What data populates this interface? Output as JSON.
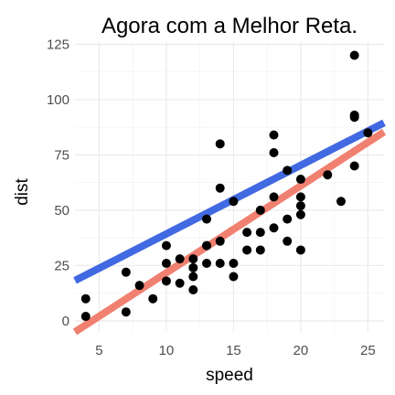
{
  "chart_data": {
    "type": "scatter",
    "title": "Agora com a Melhor Reta.",
    "xlabel": "speed",
    "ylabel": "dist",
    "xlim": [
      3.2,
      26.2
    ],
    "ylim": [
      -5,
      126
    ],
    "x_ticks": [
      5,
      10,
      15,
      20,
      25
    ],
    "y_ticks": [
      0,
      25,
      50,
      75,
      100,
      125
    ],
    "grid": true,
    "point_color": "#000000",
    "points": [
      {
        "x": 4,
        "y": 2
      },
      {
        "x": 4,
        "y": 10
      },
      {
        "x": 7,
        "y": 4
      },
      {
        "x": 7,
        "y": 22
      },
      {
        "x": 8,
        "y": 16
      },
      {
        "x": 9,
        "y": 10
      },
      {
        "x": 10,
        "y": 18
      },
      {
        "x": 10,
        "y": 26
      },
      {
        "x": 10,
        "y": 34
      },
      {
        "x": 11,
        "y": 17
      },
      {
        "x": 11,
        "y": 28
      },
      {
        "x": 12,
        "y": 14
      },
      {
        "x": 12,
        "y": 20
      },
      {
        "x": 12,
        "y": 24
      },
      {
        "x": 12,
        "y": 28
      },
      {
        "x": 13,
        "y": 26
      },
      {
        "x": 13,
        "y": 34
      },
      {
        "x": 13,
        "y": 34
      },
      {
        "x": 13,
        "y": 46
      },
      {
        "x": 14,
        "y": 26
      },
      {
        "x": 14,
        "y": 36
      },
      {
        "x": 14,
        "y": 60
      },
      {
        "x": 14,
        "y": 80
      },
      {
        "x": 15,
        "y": 20
      },
      {
        "x": 15,
        "y": 26
      },
      {
        "x": 15,
        "y": 54
      },
      {
        "x": 16,
        "y": 32
      },
      {
        "x": 16,
        "y": 40
      },
      {
        "x": 17,
        "y": 32
      },
      {
        "x": 17,
        "y": 40
      },
      {
        "x": 17,
        "y": 50
      },
      {
        "x": 18,
        "y": 42
      },
      {
        "x": 18,
        "y": 56
      },
      {
        "x": 18,
        "y": 76
      },
      {
        "x": 18,
        "y": 84
      },
      {
        "x": 19,
        "y": 36
      },
      {
        "x": 19,
        "y": 46
      },
      {
        "x": 19,
        "y": 68
      },
      {
        "x": 20,
        "y": 32
      },
      {
        "x": 20,
        "y": 48
      },
      {
        "x": 20,
        "y": 52
      },
      {
        "x": 20,
        "y": 56
      },
      {
        "x": 20,
        "y": 64
      },
      {
        "x": 22,
        "y": 66
      },
      {
        "x": 23,
        "y": 54
      },
      {
        "x": 24,
        "y": 70
      },
      {
        "x": 24,
        "y": 92
      },
      {
        "x": 24,
        "y": 93
      },
      {
        "x": 24,
        "y": 120
      },
      {
        "x": 25,
        "y": 85
      }
    ],
    "lines": [
      {
        "color": "#4169e1",
        "intercept": 8.3,
        "slope": 3.1
      },
      {
        "color": "#f08070",
        "intercept": -17.58,
        "slope": 3.93
      }
    ]
  }
}
